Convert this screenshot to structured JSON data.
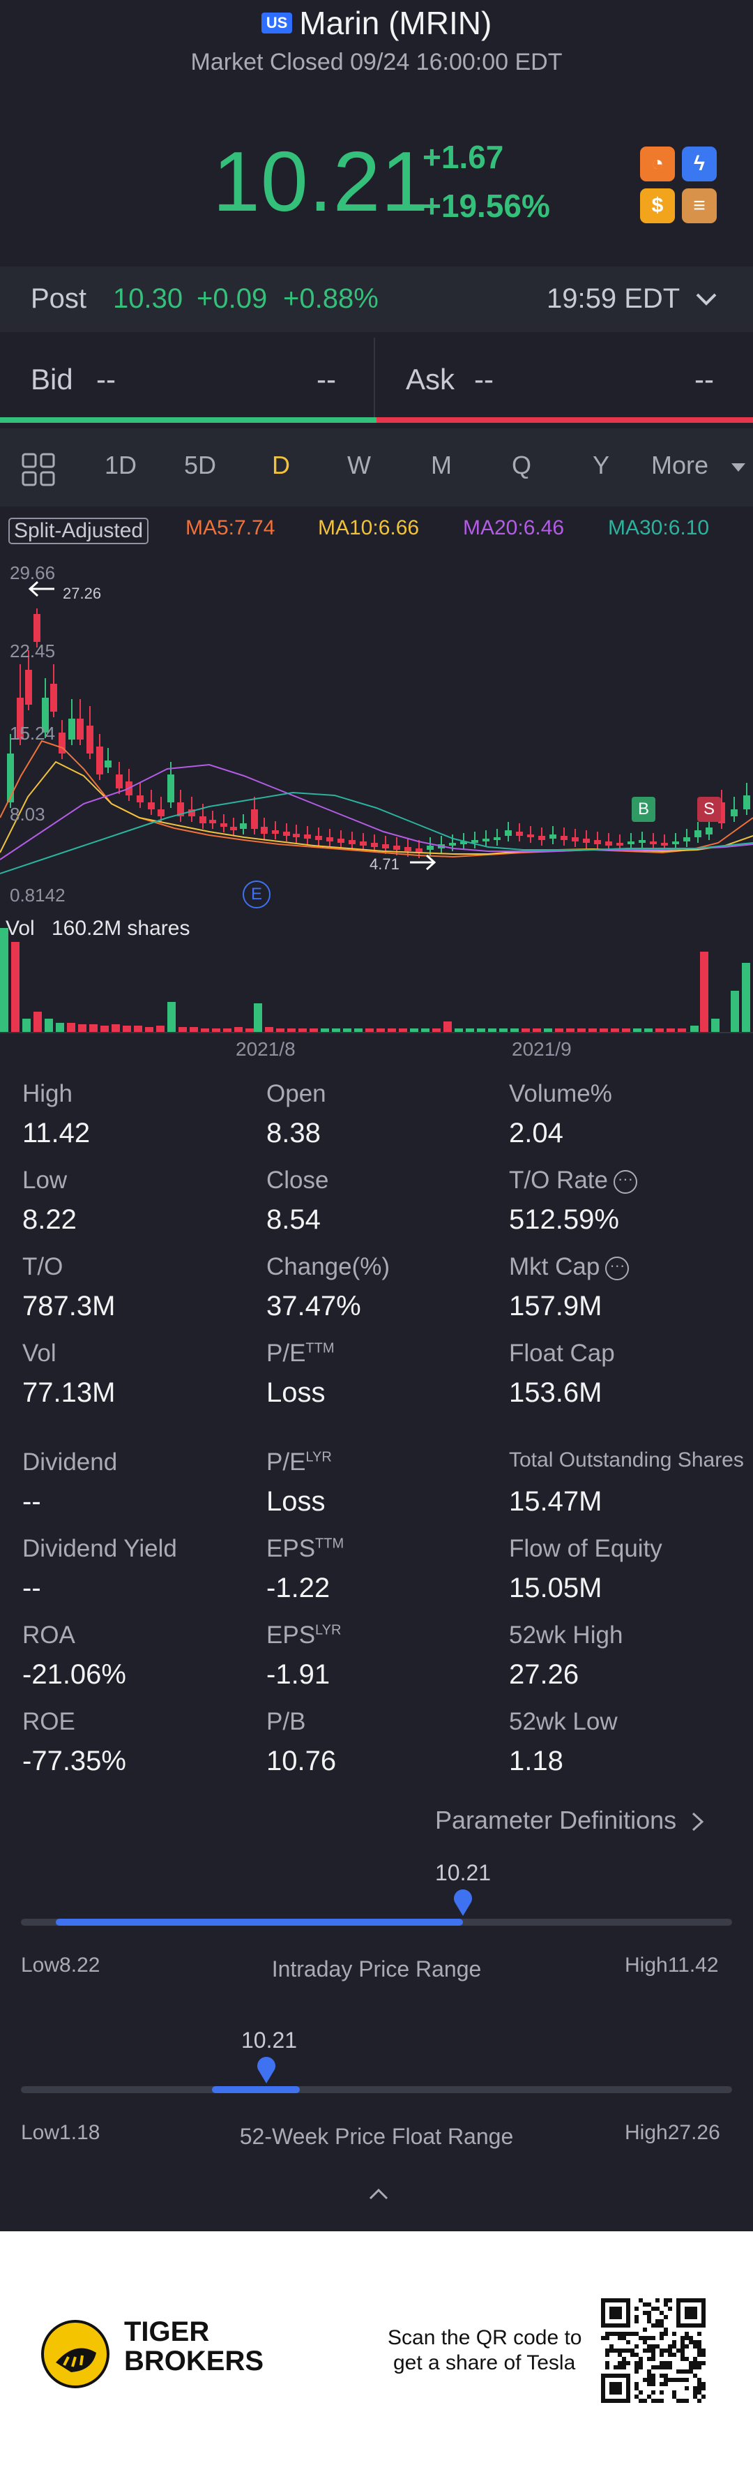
{
  "header": {
    "market_flag": "US",
    "title": "Marin (MRIN)",
    "status": "Market Closed 09/24 16:00:00 EDT",
    "price": "10.21",
    "change": "+1.67",
    "change_pct": "+19.56%"
  },
  "post": {
    "label": "Post",
    "price": "10.30",
    "change": "+0.09",
    "change_pct": "+0.88%",
    "time": "19:59 EDT"
  },
  "bidask": {
    "bid_label": "Bid",
    "bid_price": "--",
    "bid_size": "--",
    "ask_label": "Ask",
    "ask_price": "--",
    "ask_size": "--"
  },
  "toolbar": {
    "periods": [
      "1D",
      "5D",
      "D",
      "W",
      "M",
      "Q",
      "Y"
    ],
    "active": "D",
    "more": "More"
  },
  "chart": {
    "adjust_label": "Split-Adjusted",
    "ma5": "MA5:7.74",
    "ma10": "MA10:6.66",
    "ma20": "MA20:6.46",
    "ma30": "MA30:6.10",
    "y_ticks": [
      "29.66",
      "22.45",
      "15.24",
      "8.03",
      "0.8142"
    ],
    "max_marker": "27.26",
    "min_marker": "4.71",
    "event_marker": "E",
    "buy_marker": "B",
    "sell_marker": "S",
    "vol_label": "Vol",
    "vol_value": "160.2M shares",
    "x_ticks": [
      "2021/8",
      "2021/9"
    ],
    "colors": {
      "up": "#34c07a",
      "down": "#e8364f",
      "ma5": "#f0723a",
      "ma10": "#f2c23a",
      "ma20": "#b35ce6",
      "ma30": "#2bb3a0"
    }
  },
  "stats": [
    [
      {
        "label": "High",
        "value": "11.42"
      },
      {
        "label": "Open",
        "value": "8.38"
      },
      {
        "label": "Volume%",
        "value": "2.04"
      }
    ],
    [
      {
        "label": "Low",
        "value": "8.22"
      },
      {
        "label": "Close",
        "value": "8.54"
      },
      {
        "label": "T/O Rate",
        "value": "512.59%"
      }
    ],
    [
      {
        "label": "T/O",
        "value": "787.3M"
      },
      {
        "label": "Change(%)",
        "value": "37.47%"
      },
      {
        "label": "Mkt Cap",
        "value": "157.9M"
      }
    ],
    [
      {
        "label": "Vol",
        "value": "77.13M"
      },
      {
        "label": "P/E",
        "sup": "TTM",
        "value": "Loss"
      },
      {
        "label": "Float Cap",
        "value": "153.6M"
      }
    ],
    [
      {
        "label": "Dividend",
        "value": "--"
      },
      {
        "label": "P/E",
        "sup": "LYR",
        "value": "Loss"
      },
      {
        "label": "Total Outstanding Shares",
        "value": "15.47M"
      }
    ],
    [
      {
        "label": "Dividend Yield",
        "value": "--"
      },
      {
        "label": "EPS",
        "sup": "TTM",
        "value": "-1.22"
      },
      {
        "label": "Flow of Equity",
        "value": "15.05M"
      }
    ],
    [
      {
        "label": "ROA",
        "value": "-21.06%"
      },
      {
        "label": "EPS",
        "sup": "LYR",
        "value": "-1.91"
      },
      {
        "label": "52wk High",
        "value": "27.26"
      }
    ],
    [
      {
        "label": "ROE",
        "value": "-77.35%"
      },
      {
        "label": "P/B",
        "value": "10.76"
      },
      {
        "label": "52wk Low",
        "value": "1.18"
      }
    ]
  ],
  "param_link": "Parameter Definitions",
  "intraday": {
    "current": "10.21",
    "low_label": "Low",
    "low": "8.22",
    "high_label": "High",
    "high": "11.42",
    "title": "Intraday Price Range",
    "position": 0.62
  },
  "week52": {
    "current": "10.21",
    "low_label": "Low",
    "low": "1.18",
    "high_label": "High",
    "high": "27.26",
    "title": "52-Week Price Float Range",
    "position": 0.35
  },
  "footer": {
    "brand_line1": "TIGER",
    "brand_line2": "BROKERS",
    "qr_text1": "Scan the QR code to",
    "qr_text2": "get a share of Tesla"
  }
}
